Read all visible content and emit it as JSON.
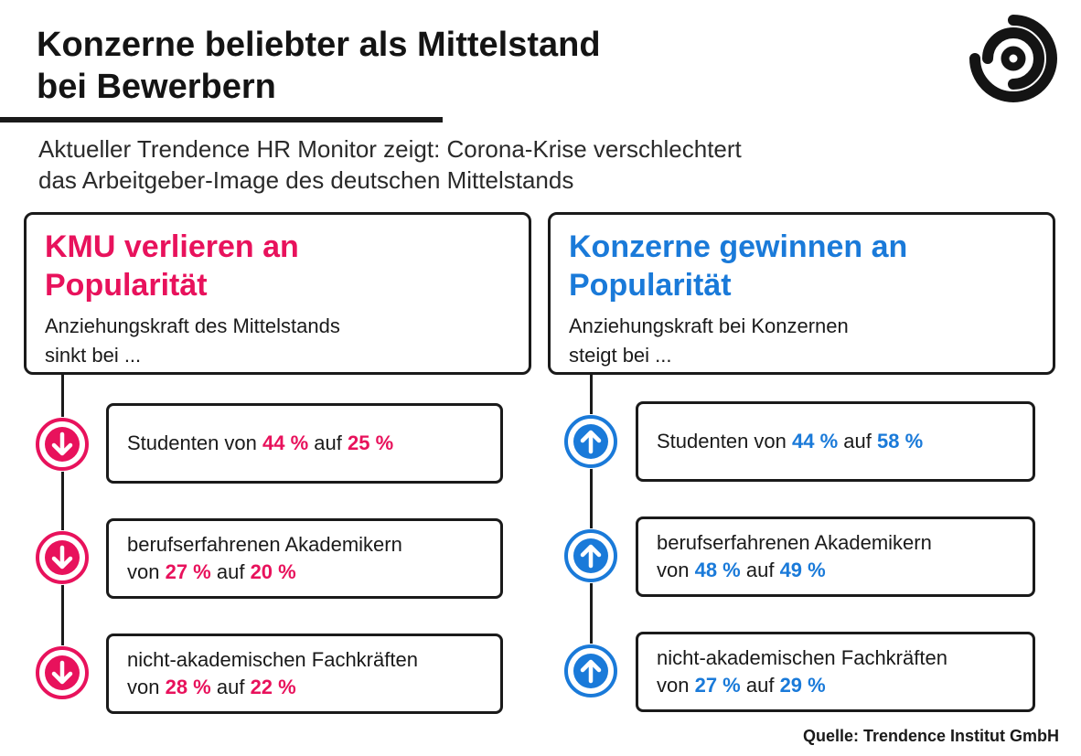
{
  "title": {
    "line1": "Konzerne beliebter als Mittelstand",
    "line2": "bei Bewerbern"
  },
  "subtitle": {
    "line1": "Aktueller Trendence HR Monitor zeigt: Corona-Krise verschlechtert",
    "line2": "das Arbeitgeber-Image des deutschen Mittelstands"
  },
  "colors": {
    "decline": "#e8125c",
    "rise": "#1a7ad9",
    "ink": "#1a1a1a"
  },
  "left": {
    "heading_line1": "KMU verlieren an",
    "heading_line2": "Popularität",
    "desc_line1": "Anziehungskraft des Mittelstands",
    "desc_line2": "sinkt bei ...",
    "icon": "arrow-down-icon",
    "items": [
      {
        "text1": "Studenten von ",
        "from": "44 %",
        "mid": " auf ",
        "to": "25 %"
      },
      {
        "line1": "berufserfahrenen Akademikern",
        "text1": "von ",
        "from": "27 %",
        "mid": " auf ",
        "to": "20 %"
      },
      {
        "line1": "nicht-akademischen Fachkräften",
        "text1": "von ",
        "from": "28 %",
        "mid": " auf ",
        "to": "22 %"
      }
    ]
  },
  "right": {
    "heading_line1": "Konzerne gewinnen an",
    "heading_line2": "Popularität",
    "desc_line1": "Anziehungskraft bei Konzernen",
    "desc_line2": "steigt bei ...",
    "icon": "arrow-up-icon",
    "items": [
      {
        "text1": "Studenten von ",
        "from": "44 %",
        "mid": " auf ",
        "to": "58 %"
      },
      {
        "line1": "berufserfahrenen Akademikern",
        "text1": "von ",
        "from": "48 %",
        "mid": " auf ",
        "to": "49 %"
      },
      {
        "line1": "nicht-akademischen Fachkräften",
        "text1": "von ",
        "from": "27 %",
        "mid": " auf ",
        "to": "29 %"
      }
    ]
  },
  "source": "Quelle: Trendence Institut GmbH"
}
